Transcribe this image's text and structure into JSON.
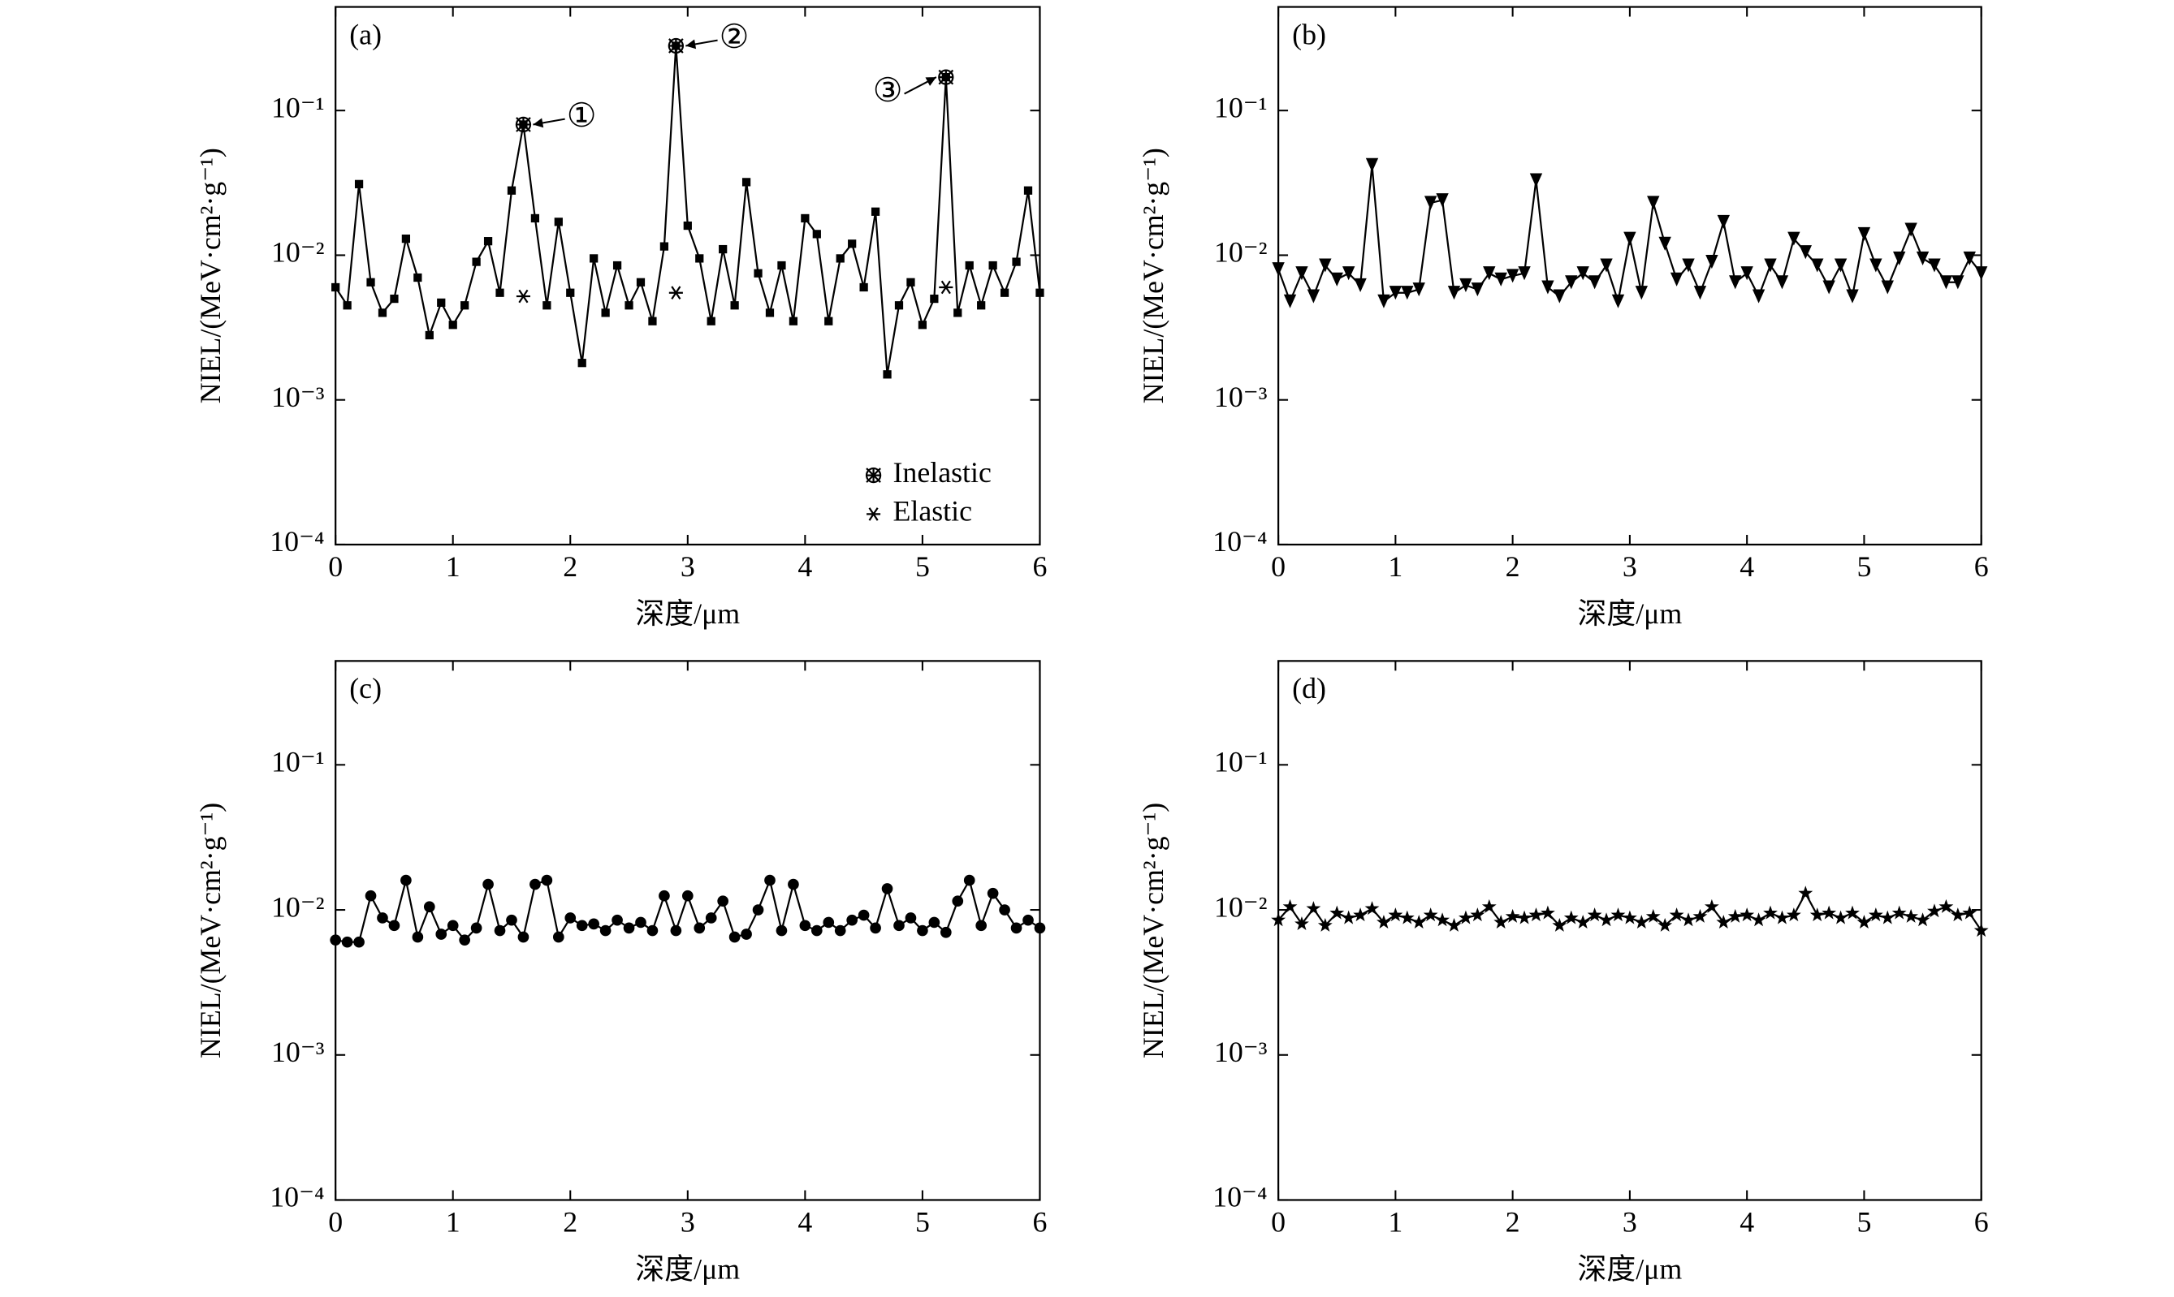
{
  "chart_data": [
    {
      "type": "line",
      "label": "(a)",
      "xlabel": "深度/μm",
      "ylabel": "NIEL/(MeV·cm²·g⁻¹)",
      "log": true,
      "xlim": [
        0,
        6
      ],
      "xticks": [
        0,
        1,
        2,
        3,
        4,
        5,
        6
      ],
      "ylim": [
        0.0001,
        0.52
      ],
      "yticks": [
        {
          "value": 0.0001,
          "label": "10⁻⁴"
        },
        {
          "value": 0.001,
          "label": "10⁻³"
        },
        {
          "value": 0.01,
          "label": "10⁻²"
        },
        {
          "value": 0.1,
          "label": "10⁻¹"
        }
      ],
      "x": [
        0,
        0.1,
        0.2,
        0.3,
        0.4,
        0.5,
        0.6,
        0.7,
        0.8,
        0.9,
        1,
        1.1,
        1.2,
        1.3,
        1.4,
        1.5,
        1.6,
        1.7,
        1.8,
        1.9,
        2,
        2.1,
        2.2,
        2.3,
        2.4,
        2.5,
        2.6,
        2.7,
        2.8,
        2.9,
        3,
        3.1,
        3.2,
        3.3,
        3.4,
        3.5,
        3.6,
        3.7,
        3.8,
        3.9,
        4,
        4.1,
        4.2,
        4.3,
        4.4,
        4.5,
        4.6,
        4.7,
        4.8,
        4.9,
        5,
        5.1,
        5.2,
        5.3,
        5.4,
        5.5,
        5.6,
        5.7,
        5.8,
        5.9,
        6
      ],
      "legend": "lower right",
      "annotations": [
        "①",
        "②",
        "③"
      ],
      "series": [
        {
          "color": "#000000",
          "marker": "square",
          "values": [
            0.006,
            0.0045,
            0.031,
            0.0065,
            0.004,
            0.005,
            0.013,
            0.007,
            0.0028,
            0.0047,
            0.0033,
            0.0045,
            0.009,
            0.0125,
            0.0055,
            0.028,
            0.08,
            0.018,
            0.0045,
            0.017,
            0.0055,
            0.0018,
            0.0095,
            0.004,
            0.0085,
            0.0045,
            0.0065,
            0.0035,
            0.0115,
            0.28,
            0.016,
            0.0095,
            0.0035,
            0.011,
            0.0045,
            0.032,
            0.0075,
            0.004,
            0.0085,
            0.0035,
            0.018,
            0.014,
            0.0035,
            0.0095,
            0.012,
            0.006,
            0.02,
            0.0015,
            0.0045,
            0.0065,
            0.0033,
            0.005,
            0.17,
            0.004,
            0.0085,
            0.0045,
            0.0085,
            0.0055,
            0.009,
            0.028,
            0.0055
          ]
        },
        {
          "name": "Inelastic",
          "color": "#000000",
          "marker": "crossed-circle",
          "line": false,
          "x": [
            1.6,
            2.9,
            5.2
          ],
          "values": [
            0.08,
            0.28,
            0.17
          ]
        },
        {
          "name": "Elastic",
          "color": "#000000",
          "marker": "asterisk",
          "line": false,
          "x": [
            1.6,
            2.9,
            5.2
          ],
          "values": [
            0.0052,
            0.0055,
            0.006
          ]
        }
      ]
    },
    {
      "type": "line",
      "label": "(b)",
      "xlabel": "深度/μm",
      "ylabel": "NIEL/(MeV·cm²·g⁻¹)",
      "log": true,
      "xlim": [
        0,
        6
      ],
      "xticks": [
        0,
        1,
        2,
        3,
        4,
        5,
        6
      ],
      "ylim": [
        0.0001,
        0.52
      ],
      "yticks": [
        {
          "value": 0.0001,
          "label": "10⁻⁴"
        },
        {
          "value": 0.001,
          "label": "10⁻³"
        },
        {
          "value": 0.01,
          "label": "10⁻²"
        },
        {
          "value": 0.1,
          "label": "10⁻¹"
        }
      ],
      "x": [
        0,
        0.1,
        0.2,
        0.3,
        0.4,
        0.5,
        0.6,
        0.7,
        0.8,
        0.9,
        1,
        1.1,
        1.2,
        1.3,
        1.4,
        1.5,
        1.6,
        1.7,
        1.8,
        1.9,
        2,
        2.1,
        2.2,
        2.3,
        2.4,
        2.5,
        2.6,
        2.7,
        2.8,
        2.9,
        3,
        3.1,
        3.2,
        3.3,
        3.4,
        3.5,
        3.6,
        3.7,
        3.8,
        3.9,
        4,
        4.1,
        4.2,
        4.3,
        4.4,
        4.5,
        4.6,
        4.7,
        4.8,
        4.9,
        5,
        5.1,
        5.2,
        5.3,
        5.4,
        5.5,
        5.6,
        5.7,
        5.8,
        5.9,
        6
      ],
      "series": [
        {
          "color": "#000000",
          "marker": "triangle-down",
          "values": [
            0.008,
            0.0048,
            0.0075,
            0.0052,
            0.0085,
            0.0068,
            0.0075,
            0.0062,
            0.042,
            0.0048,
            0.0055,
            0.0055,
            0.0058,
            0.023,
            0.024,
            0.0055,
            0.0062,
            0.0058,
            0.0075,
            0.0068,
            0.0072,
            0.0075,
            0.033,
            0.006,
            0.0052,
            0.0065,
            0.0075,
            0.0065,
            0.0085,
            0.0048,
            0.013,
            0.0055,
            0.023,
            0.012,
            0.0068,
            0.0085,
            0.0055,
            0.009,
            0.017,
            0.0065,
            0.0075,
            0.0052,
            0.0085,
            0.0065,
            0.013,
            0.0105,
            0.0085,
            0.006,
            0.0085,
            0.0052,
            0.014,
            0.0085,
            0.006,
            0.0095,
            0.015,
            0.0095,
            0.0085,
            0.0065,
            0.0065,
            0.0095,
            0.0075
          ]
        }
      ]
    },
    {
      "type": "line",
      "label": "(c)",
      "xlabel": "深度/μm",
      "ylabel": "NIEL/(MeV·cm²·g⁻¹)",
      "log": true,
      "xlim": [
        0,
        6
      ],
      "xticks": [
        0,
        1,
        2,
        3,
        4,
        5,
        6
      ],
      "ylim": [
        0.0001,
        0.52
      ],
      "yticks": [
        {
          "value": 0.0001,
          "label": "10⁻⁴"
        },
        {
          "value": 0.001,
          "label": "10⁻³"
        },
        {
          "value": 0.01,
          "label": "10⁻²"
        },
        {
          "value": 0.1,
          "label": "10⁻¹"
        }
      ],
      "x": [
        0,
        0.1,
        0.2,
        0.3,
        0.4,
        0.5,
        0.6,
        0.7,
        0.8,
        0.9,
        1,
        1.1,
        1.2,
        1.3,
        1.4,
        1.5,
        1.6,
        1.7,
        1.8,
        1.9,
        2,
        2.1,
        2.2,
        2.3,
        2.4,
        2.5,
        2.6,
        2.7,
        2.8,
        2.9,
        3,
        3.1,
        3.2,
        3.3,
        3.4,
        3.5,
        3.6,
        3.7,
        3.8,
        3.9,
        4,
        4.1,
        4.2,
        4.3,
        4.4,
        4.5,
        4.6,
        4.7,
        4.8,
        4.9,
        5,
        5.1,
        5.2,
        5.3,
        5.4,
        5.5,
        5.6,
        5.7,
        5.8,
        5.9,
        6
      ],
      "series": [
        {
          "color": "#000000",
          "marker": "circle",
          "values": [
            0.0062,
            0.006,
            0.006,
            0.0125,
            0.0088,
            0.0078,
            0.016,
            0.0065,
            0.0105,
            0.0068,
            0.0078,
            0.0062,
            0.0075,
            0.015,
            0.0072,
            0.0085,
            0.0065,
            0.015,
            0.016,
            0.0065,
            0.0088,
            0.0078,
            0.008,
            0.0072,
            0.0085,
            0.0075,
            0.0082,
            0.0072,
            0.0125,
            0.0072,
            0.0125,
            0.0075,
            0.0088,
            0.0115,
            0.0065,
            0.0068,
            0.01,
            0.016,
            0.0072,
            0.015,
            0.0078,
            0.0072,
            0.0082,
            0.0072,
            0.0085,
            0.0092,
            0.0075,
            0.014,
            0.0078,
            0.0088,
            0.0072,
            0.0082,
            0.007,
            0.0115,
            0.016,
            0.0078,
            0.013,
            0.01,
            0.0075,
            0.0085,
            0.0075
          ]
        }
      ]
    },
    {
      "type": "line",
      "label": "(d)",
      "xlabel": "深度/μm",
      "ylabel": "NIEL/(MeV·cm²·g⁻¹)",
      "log": true,
      "xlim": [
        0,
        6
      ],
      "xticks": [
        0,
        1,
        2,
        3,
        4,
        5,
        6
      ],
      "ylim": [
        0.0001,
        0.52
      ],
      "yticks": [
        {
          "value": 0.0001,
          "label": "10⁻⁴"
        },
        {
          "value": 0.001,
          "label": "10⁻³"
        },
        {
          "value": 0.01,
          "label": "10⁻²"
        },
        {
          "value": 0.1,
          "label": "10⁻¹"
        }
      ],
      "x": [
        0,
        0.1,
        0.2,
        0.3,
        0.4,
        0.5,
        0.6,
        0.7,
        0.8,
        0.9,
        1,
        1.1,
        1.2,
        1.3,
        1.4,
        1.5,
        1.6,
        1.7,
        1.8,
        1.9,
        2,
        2.1,
        2.2,
        2.3,
        2.4,
        2.5,
        2.6,
        2.7,
        2.8,
        2.9,
        3,
        3.1,
        3.2,
        3.3,
        3.4,
        3.5,
        3.6,
        3.7,
        3.8,
        3.9,
        4,
        4.1,
        4.2,
        4.3,
        4.4,
        4.5,
        4.6,
        4.7,
        4.8,
        4.9,
        5,
        5.1,
        5.2,
        5.3,
        5.4,
        5.5,
        5.6,
        5.7,
        5.8,
        5.9,
        6
      ],
      "series": [
        {
          "color": "#000000",
          "marker": "star",
          "values": [
            0.0085,
            0.0105,
            0.008,
            0.0102,
            0.0078,
            0.0095,
            0.0088,
            0.0092,
            0.0102,
            0.0082,
            0.0092,
            0.0088,
            0.0082,
            0.0092,
            0.0085,
            0.0078,
            0.0088,
            0.0092,
            0.0105,
            0.0082,
            0.009,
            0.0088,
            0.0092,
            0.0095,
            0.0078,
            0.0088,
            0.0082,
            0.0092,
            0.0085,
            0.0092,
            0.0088,
            0.0082,
            0.009,
            0.0078,
            0.0092,
            0.0085,
            0.009,
            0.0105,
            0.0082,
            0.009,
            0.0092,
            0.0085,
            0.0095,
            0.0088,
            0.0092,
            0.013,
            0.0092,
            0.0095,
            0.0088,
            0.0095,
            0.0082,
            0.0092,
            0.0088,
            0.0095,
            0.009,
            0.0085,
            0.0098,
            0.0105,
            0.0092,
            0.0095,
            0.0072
          ]
        }
      ]
    }
  ]
}
